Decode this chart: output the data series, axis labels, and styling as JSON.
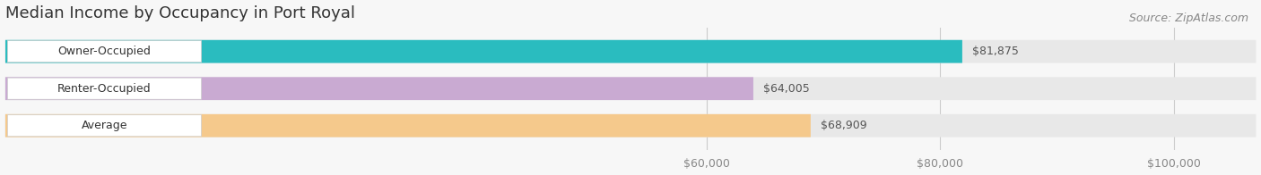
{
  "title": "Median Income by Occupancy in Port Royal",
  "source": "Source: ZipAtlas.com",
  "categories": [
    "Owner-Occupied",
    "Renter-Occupied",
    "Average"
  ],
  "values": [
    81875,
    64005,
    68909
  ],
  "labels": [
    "$81,875",
    "$64,005",
    "$68,909"
  ],
  "bar_colors": [
    "#2abcbf",
    "#c9aad2",
    "#f5c98c"
  ],
  "bar_bg_color": "#e8e8e8",
  "xlim_min": 0,
  "xlim_max": 107000,
  "xticks": [
    60000,
    80000,
    100000
  ],
  "xtick_labels": [
    "$60,000",
    "$80,000",
    "$100,000"
  ],
  "title_fontsize": 13,
  "source_fontsize": 9,
  "label_fontsize": 9,
  "tick_fontsize": 9,
  "bar_height": 0.62,
  "title_color": "#333333",
  "grid_color": "#cccccc",
  "bg_color": "#f7f7f7"
}
